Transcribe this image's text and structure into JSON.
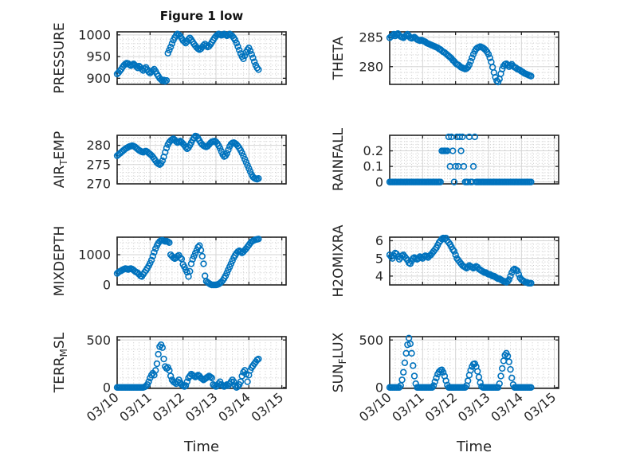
{
  "figure": {
    "title": "Figure 1 low",
    "marker_color": "#0072BD",
    "axis_color": "#222222",
    "text_color": "#262626",
    "major_grid_color": "#d5d5d5",
    "minor_grid_color": "#c9c9c9",
    "background": "#ffffff"
  },
  "xaxis": {
    "label": "Time",
    "tick_labels": [
      "03/10",
      "03/11",
      "03/12",
      "03/13",
      "03/14",
      "03/15"
    ],
    "tick_days": [
      0,
      1,
      2,
      3,
      4,
      5
    ],
    "xlim_days": [
      0,
      5.13
    ],
    "minor_step_days": 0.16667
  },
  "chart_data": {
    "type": "scatter",
    "marker": "open-circle",
    "x_unit": "hours since 03/10 00:00, 1-hour step",
    "subplots": [
      {
        "id": "pressure",
        "row": 1,
        "col": 1,
        "ylabel_parts": [
          {
            "t": "PRESSURE"
          }
        ],
        "ylim": [
          886,
          1007
        ],
        "yticks": [
          900,
          950,
          1000
        ],
        "ytick_labels": [
          "900",
          "950",
          "1000"
        ],
        "minor_dy": 10,
        "show_xticklabels": false,
        "values": [
          910,
          913,
          917,
          921,
          926,
          930,
          933,
          935,
          934,
          931,
          929,
          931,
          933,
          930,
          927,
          924,
          928,
          925,
          921,
          918,
          922,
          925,
          920,
          915,
          912,
          915,
          918,
          921,
          916,
          910,
          905,
          900,
          897,
          894,
          896,
          893,
          895,
          958,
          965,
          972,
          980,
          988,
          994,
          999,
          1002,
          1000,
          997,
          992,
          987,
          984,
          981,
          985,
          990,
          993,
          989,
          984,
          979,
          975,
          971,
          968,
          966,
          968,
          972,
          976,
          979,
          975,
          972,
          974,
          978,
          983,
          988,
          993,
          997,
          1000,
          1002,
          1001,
          999,
          1000,
          1002,
          1000,
          998,
          1000,
          1002,
          1000,
          997,
          993,
          988,
          981,
          973,
          965,
          957,
          950,
          945,
          952,
          960,
          966,
          970,
          963,
          955,
          947,
          938,
          930,
          924,
          920
        ]
      },
      {
        "id": "theta",
        "row": 1,
        "col": 2,
        "ylabel_parts": [
          {
            "t": "THETA"
          }
        ],
        "ylim": [
          277,
          285.9
        ],
        "yticks": [
          280,
          285
        ],
        "ytick_labels": [
          "280",
          "285"
        ],
        "minor_dy": 1,
        "show_xticklabels": false,
        "values": [
          284.9,
          285.1,
          285.3,
          285.5,
          285.2,
          285.4,
          285.6,
          285.3,
          285.1,
          285.0,
          284.9,
          285.1,
          285.3,
          285.5,
          285.2,
          284.9,
          284.8,
          284.9,
          285.0,
          284.8,
          284.6,
          284.5,
          284.4,
          284.5,
          284.4,
          284.3,
          284.2,
          284.0,
          283.9,
          283.8,
          283.7,
          283.6,
          283.5,
          283.4,
          283.3,
          283.2,
          283.0,
          282.9,
          282.7,
          282.5,
          282.4,
          282.2,
          282.0,
          281.8,
          281.6,
          281.4,
          281.1,
          280.9,
          280.6,
          280.4,
          280.3,
          280.1,
          279.9,
          279.8,
          279.7,
          279.6,
          279.7,
          279.9,
          280.3,
          280.9,
          281.5,
          282.1,
          282.6,
          283.0,
          283.2,
          283.3,
          283.4,
          283.3,
          283.2,
          283.0,
          282.8,
          282.5,
          282.1,
          281.5,
          280.8,
          279.9,
          279.0,
          278.2,
          277.6,
          277.4,
          277.9,
          278.8,
          279.6,
          280.1,
          280.4,
          280.5,
          280.3,
          280.0,
          280.2,
          280.4,
          280.1,
          279.9,
          279.8,
          279.6,
          279.5,
          279.4,
          279.2,
          279.1,
          278.9,
          278.8,
          278.7,
          278.6,
          278.5,
          278.4
        ]
      },
      {
        "id": "air_temp",
        "row": 2,
        "col": 1,
        "ylabel_parts": [
          {
            "t": "AIR"
          },
          {
            "t": "T",
            "sub": true
          },
          {
            "t": "EMP"
          }
        ],
        "ylim": [
          270,
          282.6
        ],
        "yticks": [
          270,
          275,
          280
        ],
        "ytick_labels": [
          "270",
          "275",
          "280"
        ],
        "minor_dy": 1,
        "show_xticklabels": false,
        "values": [
          277.3,
          277.6,
          277.9,
          278.2,
          278.5,
          278.8,
          279.1,
          279.3,
          279.5,
          279.7,
          279.8,
          279.9,
          279.8,
          279.6,
          279.3,
          279.0,
          278.7,
          278.5,
          278.3,
          278.2,
          278.4,
          278.5,
          278.3,
          278.0,
          277.7,
          277.4,
          277.0,
          276.5,
          276.0,
          275.5,
          275.2,
          275.0,
          275.3,
          276.0,
          277.0,
          278.2,
          279.3,
          280.2,
          280.8,
          281.2,
          281.5,
          281.7,
          281.4,
          281.0,
          280.7,
          280.9,
          281.1,
          280.8,
          280.4,
          280.0,
          279.5,
          279.1,
          279.4,
          280.0,
          280.7,
          281.4,
          282.0,
          282.4,
          282.3,
          281.8,
          281.2,
          280.6,
          280.2,
          279.9,
          279.7,
          279.6,
          279.8,
          280.2,
          280.6,
          280.9,
          281.0,
          281.1,
          280.9,
          280.5,
          279.9,
          279.2,
          278.4,
          277.6,
          277.1,
          277.3,
          277.9,
          278.8,
          279.7,
          280.3,
          280.6,
          280.7,
          280.5,
          280.2,
          279.8,
          279.3,
          278.7,
          278.0,
          277.2,
          276.4,
          275.6,
          274.8,
          274.0,
          273.2,
          272.4,
          271.8,
          271.5,
          271.3,
          271.2,
          271.4
        ]
      },
      {
        "id": "rainfall",
        "row": 2,
        "col": 2,
        "ylabel_parts": [
          {
            "t": "RAINFALL"
          }
        ],
        "ylim": [
          -0.012,
          0.3
        ],
        "yticks": [
          0,
          0.1,
          0.2
        ],
        "ytick_labels": [
          "0",
          "0.1",
          "0.2"
        ],
        "minor_dy": 0.02,
        "show_xticklabels": false,
        "values": [
          0,
          0,
          0,
          0,
          0,
          0,
          0,
          0,
          0,
          0,
          0,
          0,
          0,
          0,
          0,
          0,
          0,
          0,
          0,
          0,
          0,
          0,
          0,
          0,
          0,
          0,
          0,
          0,
          0,
          0,
          0,
          0,
          0,
          0,
          0,
          0,
          0,
          0,
          0.2,
          0.2,
          0.2,
          0.2,
          0.2,
          0.29,
          0.1,
          0.29,
          0.2,
          0,
          0.1,
          0.29,
          0.1,
          0.29,
          0.2,
          0.29,
          0.1,
          0,
          0,
          0,
          0.29,
          0,
          0,
          0.1,
          0.29,
          0,
          0,
          0,
          0,
          0,
          0,
          0,
          0,
          0,
          0,
          0,
          0,
          0,
          0,
          0,
          0,
          0,
          0,
          0,
          0,
          0,
          0,
          0,
          0,
          0,
          0,
          0,
          0,
          0,
          0,
          0,
          0,
          0,
          0,
          0,
          0,
          0,
          0,
          0,
          0,
          0
        ]
      },
      {
        "id": "mixdepth",
        "row": 3,
        "col": 1,
        "ylabel_parts": [
          {
            "t": "MIXDEPTH"
          }
        ],
        "ylim": [
          0,
          1580
        ],
        "yticks": [
          0,
          1000
        ],
        "ytick_labels": [
          "0",
          "1000"
        ],
        "minor_dy": 200,
        "show_xticklabels": false,
        "values": [
          380,
          420,
          450,
          470,
          500,
          520,
          540,
          530,
          510,
          530,
          540,
          520,
          490,
          450,
          420,
          400,
          350,
          300,
          280,
          350,
          420,
          480,
          550,
          630,
          720,
          820,
          950,
          1080,
          1200,
          1300,
          1380,
          1440,
          1470,
          1480,
          1460,
          1440,
          1450,
          1430,
          1400,
          1000,
          950,
          900,
          870,
          900,
          950,
          980,
          900,
          860,
          680,
          600,
          500,
          420,
          280,
          450,
          700,
          850,
          950,
          1050,
          1150,
          1250,
          1300,
          1150,
          950,
          700,
          300,
          120,
          80,
          50,
          20,
          0,
          0,
          0,
          0,
          10,
          30,
          60,
          100,
          150,
          220,
          300,
          400,
          500,
          600,
          700,
          800,
          900,
          980,
          1050,
          1100,
          1130,
          1100,
          1060,
          1100,
          1150,
          1200,
          1260,
          1320,
          1380,
          1430,
          1460,
          1480,
          1500,
          1510,
          1520
        ]
      },
      {
        "id": "h2omixra",
        "row": 3,
        "col": 2,
        "ylabel_parts": [
          {
            "t": "H2OMIXRA"
          }
        ],
        "ylim": [
          3.5,
          6.2
        ],
        "yticks": [
          4,
          5,
          6
        ],
        "ytick_labels": [
          "4",
          "5",
          "6"
        ],
        "minor_dy": 0.2,
        "show_xticklabels": false,
        "values": [
          5.2,
          5.1,
          5.0,
          5.15,
          5.3,
          5.25,
          5.1,
          4.95,
          5.05,
          5.15,
          5.2,
          5.1,
          5.0,
          4.9,
          4.75,
          4.7,
          4.85,
          5.0,
          5.05,
          5.0,
          4.95,
          5.0,
          5.1,
          5.05,
          5.0,
          5.1,
          5.15,
          5.1,
          5.05,
          5.15,
          5.2,
          5.3,
          5.4,
          5.5,
          5.6,
          5.75,
          5.9,
          6.0,
          6.1,
          6.15,
          6.1,
          6.15,
          6.0,
          5.9,
          5.8,
          5.65,
          5.5,
          5.4,
          5.2,
          5.0,
          4.9,
          4.8,
          4.7,
          4.6,
          4.55,
          4.5,
          4.45,
          4.5,
          4.6,
          4.55,
          4.5,
          4.45,
          4.5,
          4.55,
          4.5,
          4.4,
          4.35,
          4.3,
          4.25,
          4.2,
          4.2,
          4.15,
          4.1,
          4.1,
          4.05,
          4.0,
          4.0,
          3.95,
          3.9,
          3.85,
          3.85,
          3.8,
          3.75,
          3.7,
          3.7,
          3.65,
          3.7,
          3.8,
          4.0,
          4.2,
          4.35,
          4.4,
          4.35,
          4.3,
          4.1,
          3.9,
          3.8,
          3.75,
          3.7,
          3.65,
          3.65,
          3.6,
          3.6,
          3.6
        ]
      },
      {
        "id": "terr_msl",
        "row": 4,
        "col": 1,
        "ylabel_parts": [
          {
            "t": "TERR"
          },
          {
            "t": "M",
            "sub": true
          },
          {
            "t": "SL"
          }
        ],
        "ylim": [
          -10,
          535
        ],
        "yticks": [
          0,
          500
        ],
        "ytick_labels": [
          "0",
          "500"
        ],
        "minor_dy": 100,
        "show_xticklabels": true,
        "values": [
          0,
          0,
          0,
          0,
          0,
          0,
          0,
          0,
          0,
          0,
          0,
          0,
          0,
          0,
          0,
          0,
          0,
          0,
          0,
          0,
          5,
          15,
          30,
          60,
          100,
          130,
          150,
          130,
          180,
          250,
          350,
          430,
          450,
          420,
          300,
          220,
          200,
          210,
          180,
          120,
          80,
          60,
          50,
          40,
          60,
          80,
          50,
          30,
          20,
          10,
          20,
          60,
          100,
          120,
          140,
          130,
          120,
          110,
          120,
          130,
          120,
          100,
          90,
          80,
          90,
          100,
          110,
          120,
          110,
          100,
          30,
          20,
          10,
          20,
          40,
          60,
          30,
          20,
          10,
          20,
          30,
          20,
          40,
          60,
          80,
          60,
          20,
          0,
          10,
          30,
          60,
          120,
          160,
          180,
          140,
          60,
          130,
          180,
          210,
          230,
          250,
          270,
          290,
          300
        ]
      },
      {
        "id": "sun_flux",
        "row": 4,
        "col": 2,
        "ylabel_parts": [
          {
            "t": "SUN"
          },
          {
            "t": "F",
            "sub": true
          },
          {
            "t": "LUX"
          }
        ],
        "ylim": [
          -10,
          535
        ],
        "yticks": [
          0,
          500
        ],
        "ytick_labels": [
          "0",
          "500"
        ],
        "minor_dy": 100,
        "show_xticklabels": true,
        "values": [
          0,
          0,
          0,
          0,
          0,
          0,
          0,
          0,
          20,
          80,
          160,
          260,
          360,
          450,
          520,
          460,
          360,
          230,
          120,
          40,
          0,
          0,
          0,
          0,
          0,
          0,
          0,
          0,
          0,
          0,
          0,
          0,
          20,
          60,
          100,
          140,
          165,
          180,
          185,
          160,
          120,
          70,
          25,
          0,
          0,
          0,
          0,
          0,
          0,
          0,
          0,
          0,
          0,
          0,
          0,
          0,
          20,
          70,
          130,
          180,
          220,
          245,
          250,
          220,
          170,
          110,
          50,
          10,
          0,
          0,
          0,
          0,
          0,
          0,
          0,
          0,
          0,
          0,
          0,
          0,
          40,
          120,
          200,
          280,
          340,
          360,
          330,
          270,
          190,
          100,
          30,
          0,
          0,
          0,
          0,
          0,
          0,
          0,
          0,
          0,
          0,
          0,
          0,
          0
        ]
      }
    ]
  }
}
